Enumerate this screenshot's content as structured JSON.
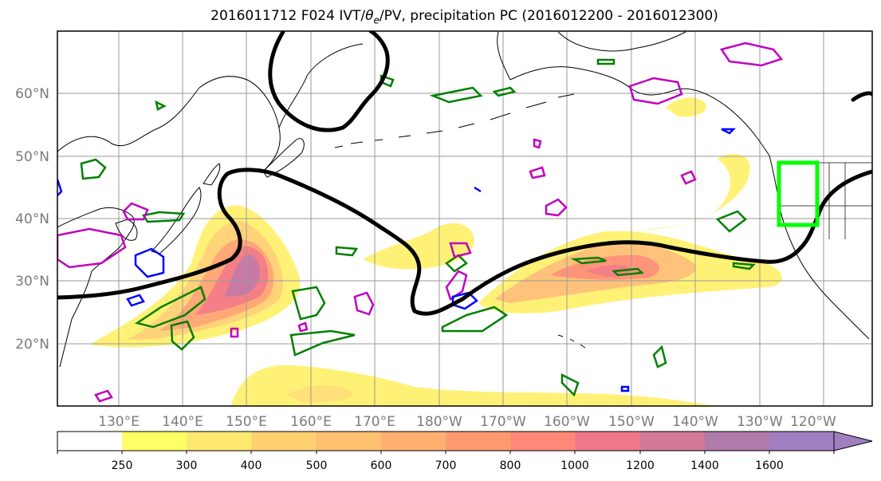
{
  "title": {
    "prefix": "2016011712 F024 IVT/",
    "theta": "θ",
    "theta_sub": "e",
    "suffix": "/PV, precipitation PC (2016012200 - 2016012300)"
  },
  "map": {
    "lat_labels": [
      "60°N",
      "50°N",
      "40°N",
      "30°N",
      "20°N"
    ],
    "lon_labels": [
      "130°E",
      "140°E",
      "150°E",
      "160°E",
      "170°E",
      "180°W",
      "170°W",
      "160°W",
      "150°W",
      "140°W",
      "130°W",
      "120°W"
    ],
    "target_box_color": "#00ff00",
    "pv_line_color": "#000000",
    "contour_colors": {
      "green": "#008000",
      "magenta": "#c000c0",
      "blue": "#0000ff"
    }
  },
  "colorbar": {
    "ticks": [
      "250",
      "300",
      "400",
      "500",
      "600",
      "700",
      "800",
      "1000",
      "1200",
      "1400",
      "1600"
    ],
    "colors": [
      "#ffffff",
      "#ffff66",
      "#ffe870",
      "#ffd070",
      "#ffc070",
      "#ffb070",
      "#ff9a70",
      "#ff8878",
      "#ef7888",
      "#d27898",
      "#b07aaa",
      "#a07ec0"
    ]
  }
}
